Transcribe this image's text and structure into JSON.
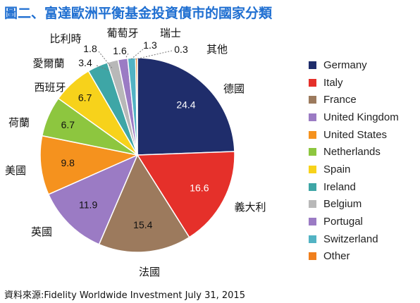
{
  "title": "圖二、富達歐洲平衡基金投資債市的國家分類",
  "source": "資料來源:Fidelity Worldwide Investment July 31, 2015",
  "chart_data": {
    "type": "pie",
    "title": "圖二、富達歐洲平衡基金投資債市的國家分類",
    "slices": [
      {
        "legend": "Germany",
        "label": "德國",
        "value": 24.4,
        "color": "#1f2d6b"
      },
      {
        "legend": "Italy",
        "label": "義大利",
        "value": 16.6,
        "color": "#e5302a"
      },
      {
        "legend": "France",
        "label": "法國",
        "value": 15.4,
        "color": "#9c7a5d"
      },
      {
        "legend": "United Kingdom",
        "label": "英國",
        "value": 11.9,
        "color": "#9b7bc4"
      },
      {
        "legend": "United States",
        "label": "美國",
        "value": 9.8,
        "color": "#f5921e"
      },
      {
        "legend": "Netherlands",
        "label": "荷蘭",
        "value": 6.7,
        "color": "#8dc63f"
      },
      {
        "legend": "Spain",
        "label": "西班牙",
        "value": 6.7,
        "color": "#f7d21b"
      },
      {
        "legend": "Ireland",
        "label": "愛爾蘭",
        "value": 3.4,
        "color": "#3ea6a6"
      },
      {
        "legend": "Belgium",
        "label": "比利時",
        "value": 1.8,
        "color": "#b8b8b8"
      },
      {
        "legend": "Portugal",
        "label": "葡萄牙",
        "value": 1.6,
        "color": "#9b7bc4"
      },
      {
        "legend": "Switzerland",
        "label": "瑞士",
        "value": 1.3,
        "color": "#52b3c4"
      },
      {
        "legend": "Other",
        "label": "其他",
        "value": 0.3,
        "color": "#f07f1d"
      }
    ],
    "legend_position": "right"
  }
}
